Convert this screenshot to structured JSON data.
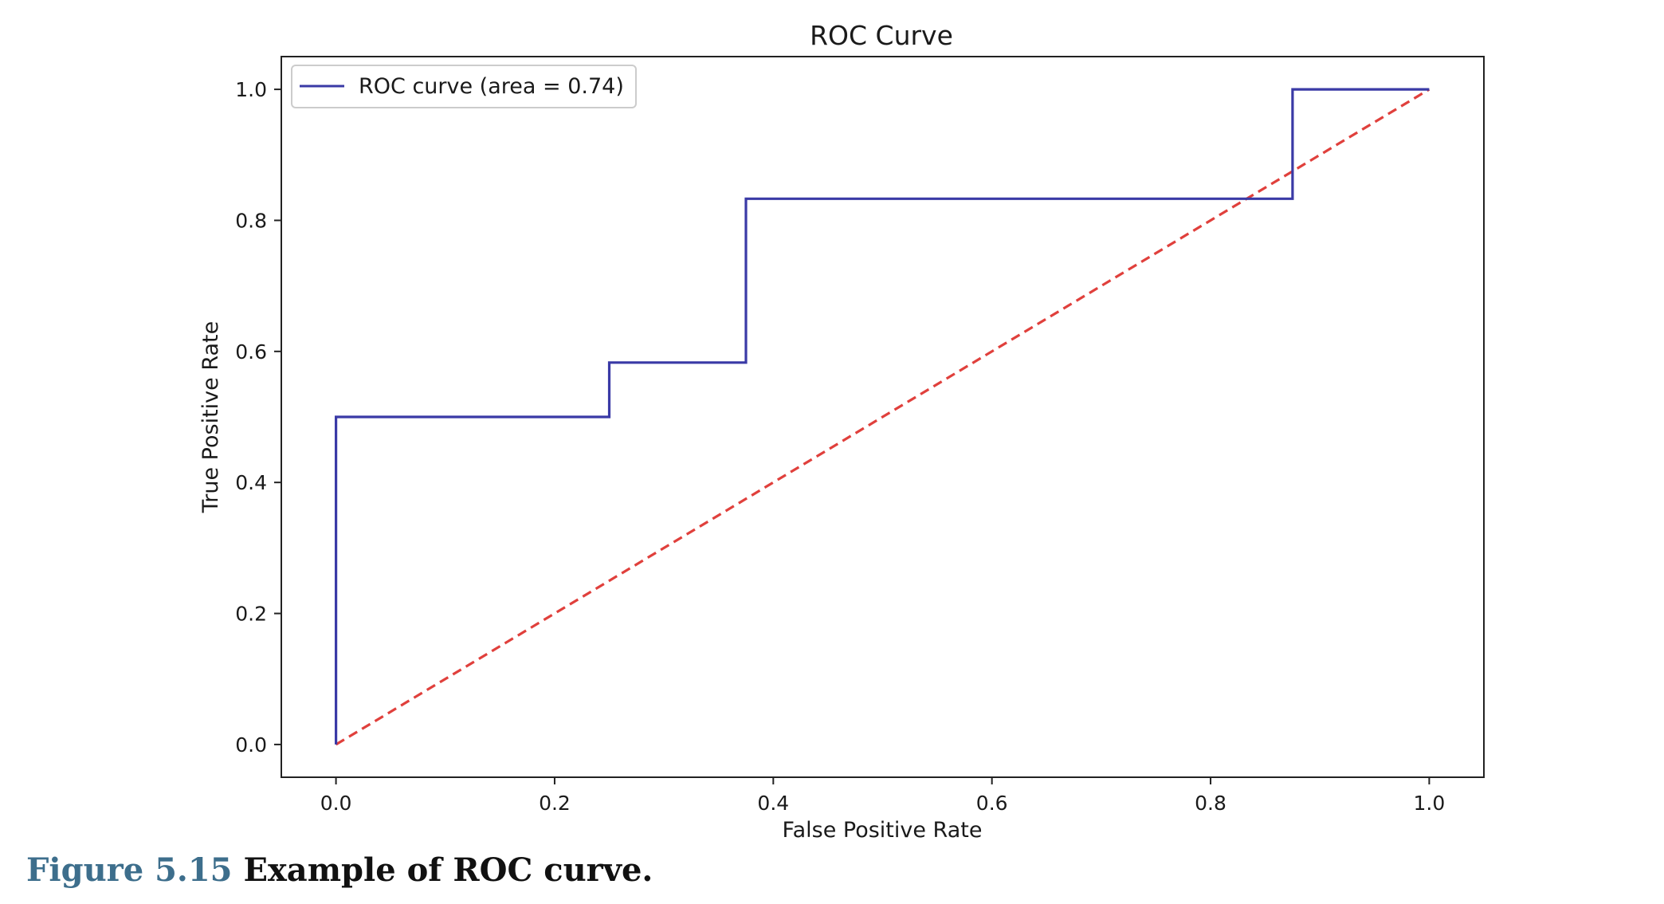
{
  "chart_data": {
    "type": "line",
    "title": "ROC Curve",
    "xlabel": "False Positive Rate",
    "ylabel": "True Positive Rate",
    "xlim": [
      -0.05,
      1.05
    ],
    "ylim": [
      -0.05,
      1.05
    ],
    "xticks": [
      0.0,
      0.2,
      0.4,
      0.6,
      0.8,
      1.0
    ],
    "yticks": [
      0.0,
      0.2,
      0.4,
      0.6,
      0.8,
      1.0
    ],
    "xtick_labels": [
      "0.0",
      "0.2",
      "0.4",
      "0.6",
      "0.8",
      "1.0"
    ],
    "ytick_labels": [
      "0.0",
      "0.2",
      "0.4",
      "0.6",
      "0.8",
      "1.0"
    ],
    "grid": false,
    "legend_position": "top-left",
    "series": [
      {
        "name": "ROC curve (area = 0.74)",
        "color": "#3a3aa6",
        "style": "solid",
        "x": [
          0.0,
          0.0,
          0.25,
          0.25,
          0.375,
          0.375,
          0.875,
          0.875,
          1.0
        ],
        "y": [
          0.0,
          0.5,
          0.5,
          0.583,
          0.583,
          0.833,
          0.833,
          1.0,
          1.0
        ]
      },
      {
        "color": "#e0403c",
        "style": "dashed",
        "x": [
          0.0,
          1.0
        ],
        "y": [
          0.0,
          1.0
        ]
      }
    ]
  },
  "caption": {
    "figure_number": "Figure 5.15",
    "text": "Example of ROC curve."
  }
}
